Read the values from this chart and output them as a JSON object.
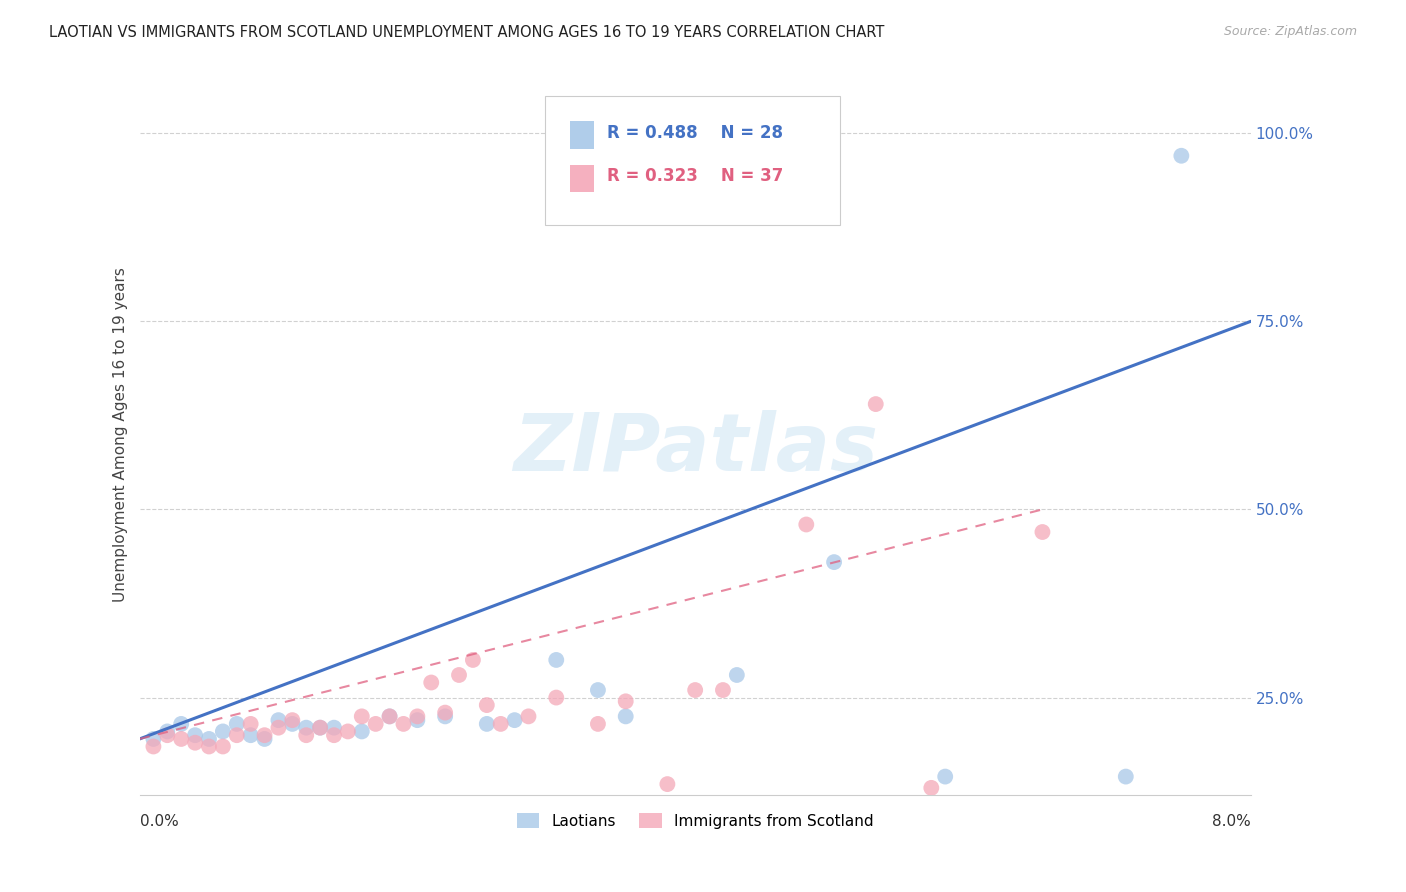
{
  "title": "LAOTIAN VS IMMIGRANTS FROM SCOTLAND UNEMPLOYMENT AMONG AGES 16 TO 19 YEARS CORRELATION CHART",
  "source": "Source: ZipAtlas.com",
  "ylabel": "Unemployment Among Ages 16 to 19 years",
  "xlim": [
    0.0,
    0.08
  ],
  "ylim": [
    0.12,
    1.08
  ],
  "legend_label1": "Laotians",
  "legend_label2": "Immigrants from Scotland",
  "R1": 0.488,
  "N1": 28,
  "R2": 0.323,
  "N2": 37,
  "color_blue": "#a8c8e8",
  "color_pink": "#f4a8b8",
  "color_line_blue": "#4472c4",
  "color_line_pink": "#e06080",
  "watermark": "ZIPatlas",
  "laotian_x": [
    0.001,
    0.002,
    0.003,
    0.004,
    0.005,
    0.006,
    0.007,
    0.008,
    0.009,
    0.01,
    0.011,
    0.012,
    0.013,
    0.014,
    0.016,
    0.018,
    0.02,
    0.022,
    0.025,
    0.027,
    0.03,
    0.033,
    0.035,
    0.043,
    0.05,
    0.058,
    0.071,
    0.075
  ],
  "laotian_y": [
    0.195,
    0.205,
    0.215,
    0.2,
    0.195,
    0.205,
    0.215,
    0.2,
    0.195,
    0.22,
    0.215,
    0.21,
    0.21,
    0.21,
    0.205,
    0.225,
    0.22,
    0.225,
    0.215,
    0.22,
    0.3,
    0.26,
    0.225,
    0.28,
    0.43,
    0.145,
    0.145,
    0.97
  ],
  "scotland_x": [
    0.001,
    0.002,
    0.003,
    0.004,
    0.005,
    0.006,
    0.007,
    0.008,
    0.009,
    0.01,
    0.011,
    0.012,
    0.013,
    0.014,
    0.015,
    0.016,
    0.017,
    0.018,
    0.019,
    0.02,
    0.021,
    0.022,
    0.023,
    0.024,
    0.025,
    0.026,
    0.028,
    0.03,
    0.033,
    0.035,
    0.038,
    0.04,
    0.042,
    0.048,
    0.053,
    0.057,
    0.065
  ],
  "scotland_y": [
    0.185,
    0.2,
    0.195,
    0.19,
    0.185,
    0.185,
    0.2,
    0.215,
    0.2,
    0.21,
    0.22,
    0.2,
    0.21,
    0.2,
    0.205,
    0.225,
    0.215,
    0.225,
    0.215,
    0.225,
    0.27,
    0.23,
    0.28,
    0.3,
    0.24,
    0.215,
    0.225,
    0.25,
    0.215,
    0.245,
    0.135,
    0.26,
    0.26,
    0.48,
    0.64,
    0.13,
    0.47
  ],
  "line1_x0": 0.0,
  "line1_y0": 0.195,
  "line1_x1": 0.08,
  "line1_y1": 0.75,
  "line2_x0": 0.0,
  "line2_y0": 0.195,
  "line2_x1": 0.065,
  "line2_y1": 0.5
}
